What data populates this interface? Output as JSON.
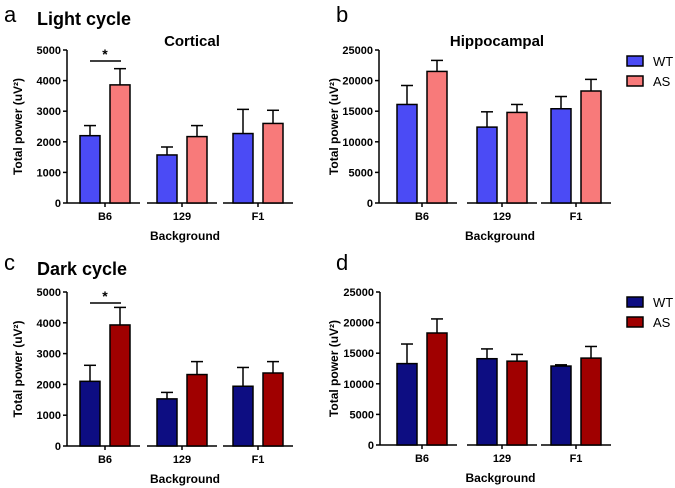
{
  "chart_data": [
    {
      "type": "bar",
      "panel_letter": "a",
      "cycle_title": "Light cycle",
      "title": "Cortical",
      "xlabel": "Background",
      "ylabel": "Total power (uV²)",
      "ylim": [
        0,
        5000
      ],
      "yticks": [
        0,
        1000,
        2000,
        3000,
        4000,
        5000
      ],
      "categories": [
        "B6",
        "129",
        "F1"
      ],
      "series": [
        {
          "name": "WT",
          "color": "#4b4bf5",
          "values": [
            2200,
            1570,
            2270
          ],
          "error": [
            330,
            260,
            790
          ]
        },
        {
          "name": "AS",
          "color": "#f87a7a",
          "values": [
            3860,
            2170,
            2600
          ],
          "error": [
            530,
            360,
            430
          ]
        }
      ],
      "significance": [
        {
          "category": "B6",
          "label": "*"
        }
      ],
      "legend": false
    },
    {
      "type": "bar",
      "panel_letter": "b",
      "title": "Hippocampal",
      "xlabel": "Background",
      "ylabel": "Total power (uV²)",
      "ylim": [
        0,
        25000
      ],
      "yticks": [
        0,
        5000,
        10000,
        15000,
        20000,
        25000
      ],
      "categories": [
        "B6",
        "129",
        "F1"
      ],
      "series": [
        {
          "name": "WT",
          "color": "#4b4bf5",
          "values": [
            16100,
            12400,
            15400
          ],
          "error": [
            3100,
            2500,
            2000
          ]
        },
        {
          "name": "AS",
          "color": "#f87a7a",
          "values": [
            21500,
            14800,
            18300
          ],
          "error": [
            1800,
            1300,
            1900
          ]
        }
      ],
      "legend": "right"
    },
    {
      "type": "bar",
      "panel_letter": "c",
      "cycle_title": "Dark cycle",
      "xlabel": "Background",
      "ylabel": "Total power (uV²)",
      "ylim": [
        0,
        5000
      ],
      "yticks": [
        0,
        1000,
        2000,
        3000,
        4000,
        5000
      ],
      "categories": [
        "B6",
        "129",
        "F1"
      ],
      "series": [
        {
          "name": "WT",
          "color": "#0d0d82",
          "values": [
            2100,
            1530,
            1940
          ],
          "error": [
            520,
            210,
            610
          ]
        },
        {
          "name": "AS",
          "color": "#a00000",
          "values": [
            3930,
            2320,
            2370
          ],
          "error": [
            570,
            420,
            370
          ]
        }
      ],
      "significance": [
        {
          "category": "B6",
          "label": "*"
        }
      ],
      "legend": false
    },
    {
      "type": "bar",
      "panel_letter": "d",
      "xlabel": "Background",
      "ylabel": "Total power (uV²)",
      "ylim": [
        0,
        25000
      ],
      "yticks": [
        0,
        5000,
        10000,
        15000,
        20000,
        25000
      ],
      "categories": [
        "B6",
        "129",
        "F1"
      ],
      "series": [
        {
          "name": "WT",
          "color": "#0d0d82",
          "values": [
            13300,
            14100,
            12900
          ],
          "error": [
            3200,
            1600,
            200
          ]
        },
        {
          "name": "AS",
          "color": "#a00000",
          "values": [
            18300,
            13700,
            14200
          ],
          "error": [
            2300,
            1100,
            1900
          ]
        }
      ],
      "legend": "right"
    }
  ]
}
